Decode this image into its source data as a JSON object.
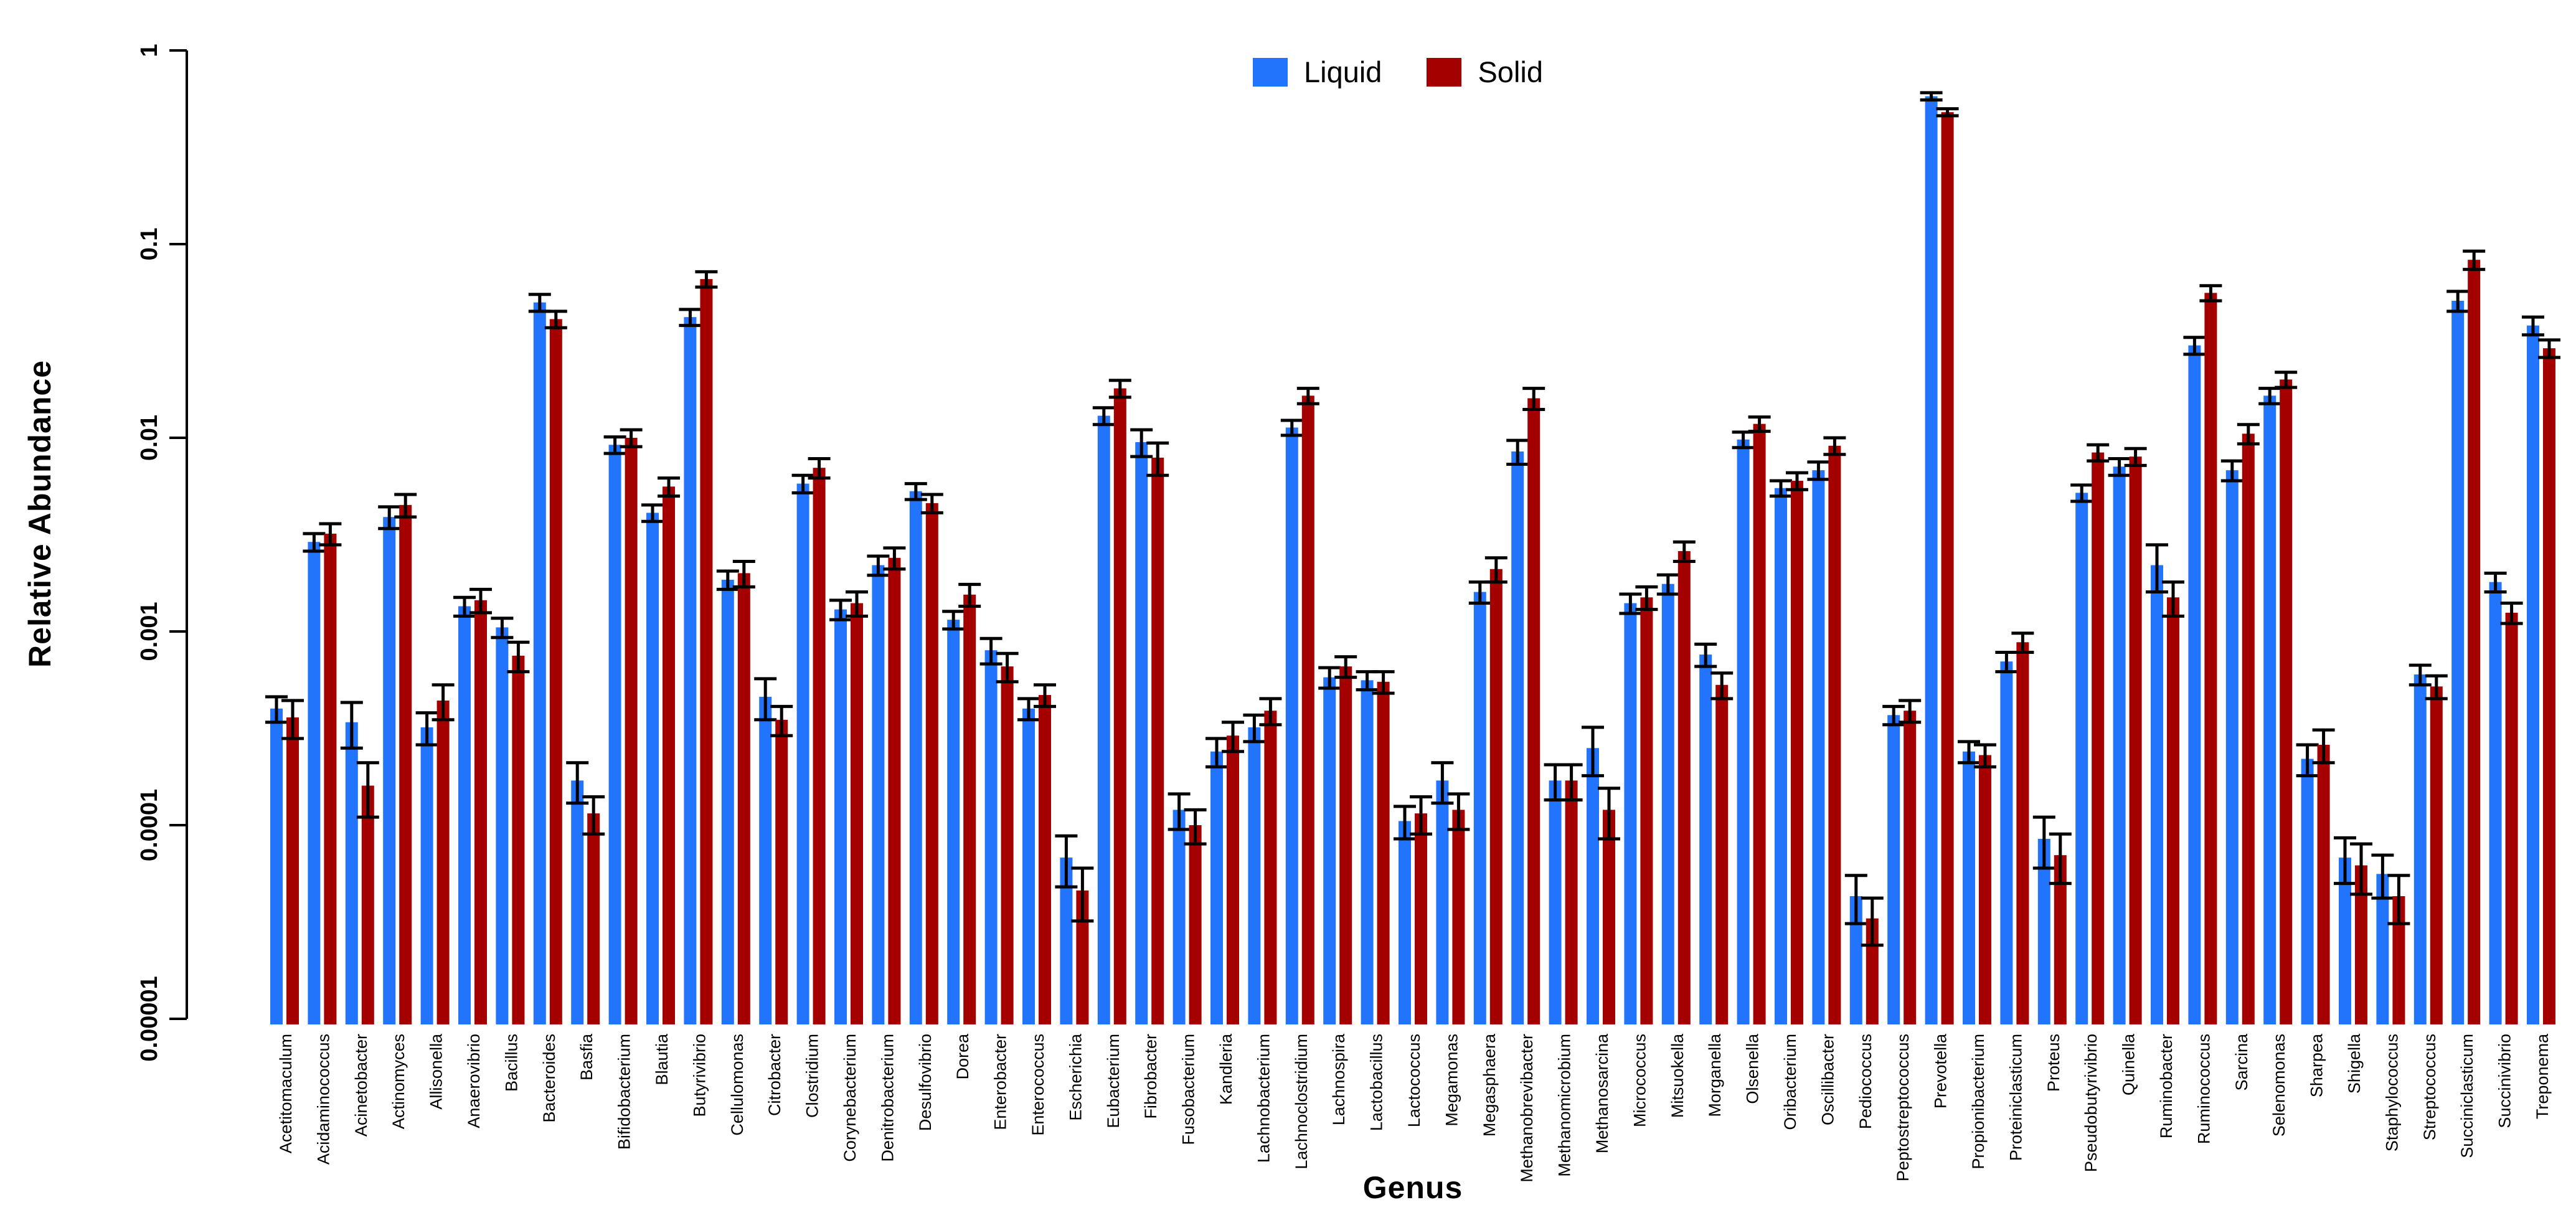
{
  "chart_data": {
    "type": "bar",
    "title": "",
    "xlabel": "Genus",
    "ylabel": "Relative Abundance",
    "log_scale": true,
    "ylim": [
      1e-05,
      1
    ],
    "yticks": [
      1,
      0.1,
      0.01,
      0.001,
      0.0001,
      1e-05
    ],
    "ytick_labels": [
      "1",
      "0.1",
      "0.01",
      "0.001",
      "0.0001",
      "0.00001"
    ],
    "grid": false,
    "legend_position": "top-center",
    "error_bars": true,
    "colors": {
      "liquid": "#2374FC",
      "solid": "#A40000"
    },
    "series_names": [
      "Liquid",
      "Solid"
    ],
    "categories": [
      "Acetitomaculum",
      "Acidaminococcus",
      "Acinetobacter",
      "Actinomyces",
      "Allisonella",
      "Anaerovibrio",
      "Bacillus",
      "Bacteroides",
      "Basfia",
      "Bifidobacterium",
      "Blautia",
      "Butyrivibrio",
      "Cellulomonas",
      "Citrobacter",
      "Clostridium",
      "Corynebacterium",
      "Denitrobacterium",
      "Desulfovibrio",
      "Dorea",
      "Enterobacter",
      "Enterococcus",
      "Escherichia",
      "Eubacterium",
      "Fibrobacter",
      "Fusobacterium",
      "Kandleria",
      "Lachnobacterium",
      "Lachnoclostridium",
      "Lachnospira",
      "Lactobacillus",
      "Lactococcus",
      "Megamonas",
      "Megasphaera",
      "Methanobrevibacter",
      "Methanomicrobium",
      "Methanosarcina",
      "Micrococcus",
      "Mitsuokella",
      "Morganella",
      "Olsenella",
      "Oribacterium",
      "Oscillibacter",
      "Pediococcus",
      "Peptostreptococcus",
      "Prevotella",
      "Propionibacterium",
      "Proteiniclasticum",
      "Proteus",
      "Pseudobutyrivibrio",
      "Quinella",
      "Ruminobacter",
      "Ruminococcus",
      "Sarcina",
      "Selenomonas",
      "Sharpea",
      "Shigella",
      "Staphylococcus",
      "Streptococcus",
      "Succiniclasticum",
      "Succinivibrio",
      "Treponema"
    ],
    "series": [
      {
        "name": "Liquid",
        "color": "#2374FC",
        "values": [
          0.0004,
          0.0029,
          0.00034,
          0.0039,
          0.00032,
          0.00135,
          0.00105,
          0.05,
          0.00017,
          0.0092,
          0.0041,
          0.042,
          0.00185,
          0.00046,
          0.0058,
          0.0013,
          0.0022,
          0.0053,
          0.00115,
          0.0008,
          0.0004,
          6.8e-05,
          0.013,
          0.0095,
          0.00012,
          0.00024,
          0.00032,
          0.0113,
          0.00058,
          0.00056,
          0.000105,
          0.00017,
          0.0016,
          0.0085,
          0.00017,
          0.00025,
          0.0014,
          0.00176,
          0.00076,
          0.0098,
          0.0055,
          0.0068,
          4.3e-05,
          0.00037,
          0.58,
          0.00024,
          0.0007,
          8.5e-05,
          0.0052,
          0.0071,
          0.0022,
          0.03,
          0.0068,
          0.0165,
          0.00022,
          6.8e-05,
          5.6e-05,
          0.0006,
          0.051,
          0.0018,
          0.038
        ],
        "errors": [
          6e-05,
          0.0003,
          9e-05,
          0.0005,
          6e-05,
          0.00015,
          0.00012,
          0.005,
          4e-05,
          0.0009,
          0.0004,
          0.004,
          0.0002,
          0.00011,
          0.0006,
          0.00015,
          0.00025,
          0.0005,
          0.00012,
          0.00012,
          5e-05,
          2e-05,
          0.0013,
          0.0015,
          2.5e-05,
          4e-05,
          5e-05,
          0.001,
          7e-05,
          6e-05,
          2e-05,
          4e-05,
          0.0002,
          0.0012,
          3.5e-05,
          7e-05,
          0.00016,
          0.0002,
          0.0001,
          0.0009,
          0.0005,
          0.0007,
          1.2e-05,
          4e-05,
          0.025,
          3e-05,
          8e-05,
          2.5e-05,
          0.0005,
          0.0007,
          0.0006,
          0.003,
          0.0008,
          0.0015,
          4e-05,
          1.8e-05,
          1.4e-05,
          7e-05,
          0.006,
          0.0002,
          0.004
        ]
      },
      {
        "name": "Solid",
        "color": "#A40000",
        "values": [
          0.00036,
          0.0032,
          0.00016,
          0.0045,
          0.00044,
          0.00145,
          0.00075,
          0.041,
          0.000115,
          0.01,
          0.0056,
          0.066,
          0.002,
          0.00035,
          0.007,
          0.0014,
          0.0024,
          0.0046,
          0.00155,
          0.00066,
          0.00047,
          4.6e-05,
          0.018,
          0.0079,
          0.0001,
          0.00029,
          0.00039,
          0.0165,
          0.00066,
          0.00055,
          0.000115,
          0.00012,
          0.0021,
          0.016,
          0.00017,
          0.00012,
          0.0015,
          0.0026,
          0.00053,
          0.0118,
          0.006,
          0.0091,
          3.3e-05,
          0.00039,
          0.48,
          0.00023,
          0.00088,
          7e-05,
          0.0084,
          0.008,
          0.0015,
          0.056,
          0.0105,
          0.02,
          0.00026,
          6.2e-05,
          4.3e-05,
          0.00052,
          0.083,
          0.00125,
          0.029
        ],
        "errors": [
          8e-05,
          0.0004,
          5e-05,
          0.0006,
          9e-05,
          0.0002,
          0.00013,
          0.004,
          2.5e-05,
          0.001,
          0.0006,
          0.006,
          0.0003,
          6e-05,
          0.0008,
          0.0002,
          0.0003,
          0.0005,
          0.0002,
          0.00011,
          6e-05,
          1.4e-05,
          0.0018,
          0.0015,
          2e-05,
          5e-05,
          6e-05,
          0.0015,
          8e-05,
          7e-05,
          2.5e-05,
          2.5e-05,
          0.0003,
          0.002,
          3.5e-05,
          3.5e-05,
          0.0002,
          0.0003,
          8e-05,
          0.001,
          0.0006,
          0.0009,
          9e-06,
          5e-05,
          0.02,
          3e-05,
          0.0001,
          2e-05,
          0.0008,
          0.0008,
          0.0003,
          0.005,
          0.0012,
          0.0018,
          5e-05,
          1.8e-05,
          1.2e-05,
          7e-05,
          0.009,
          0.00015,
          0.003
        ]
      }
    ]
  }
}
